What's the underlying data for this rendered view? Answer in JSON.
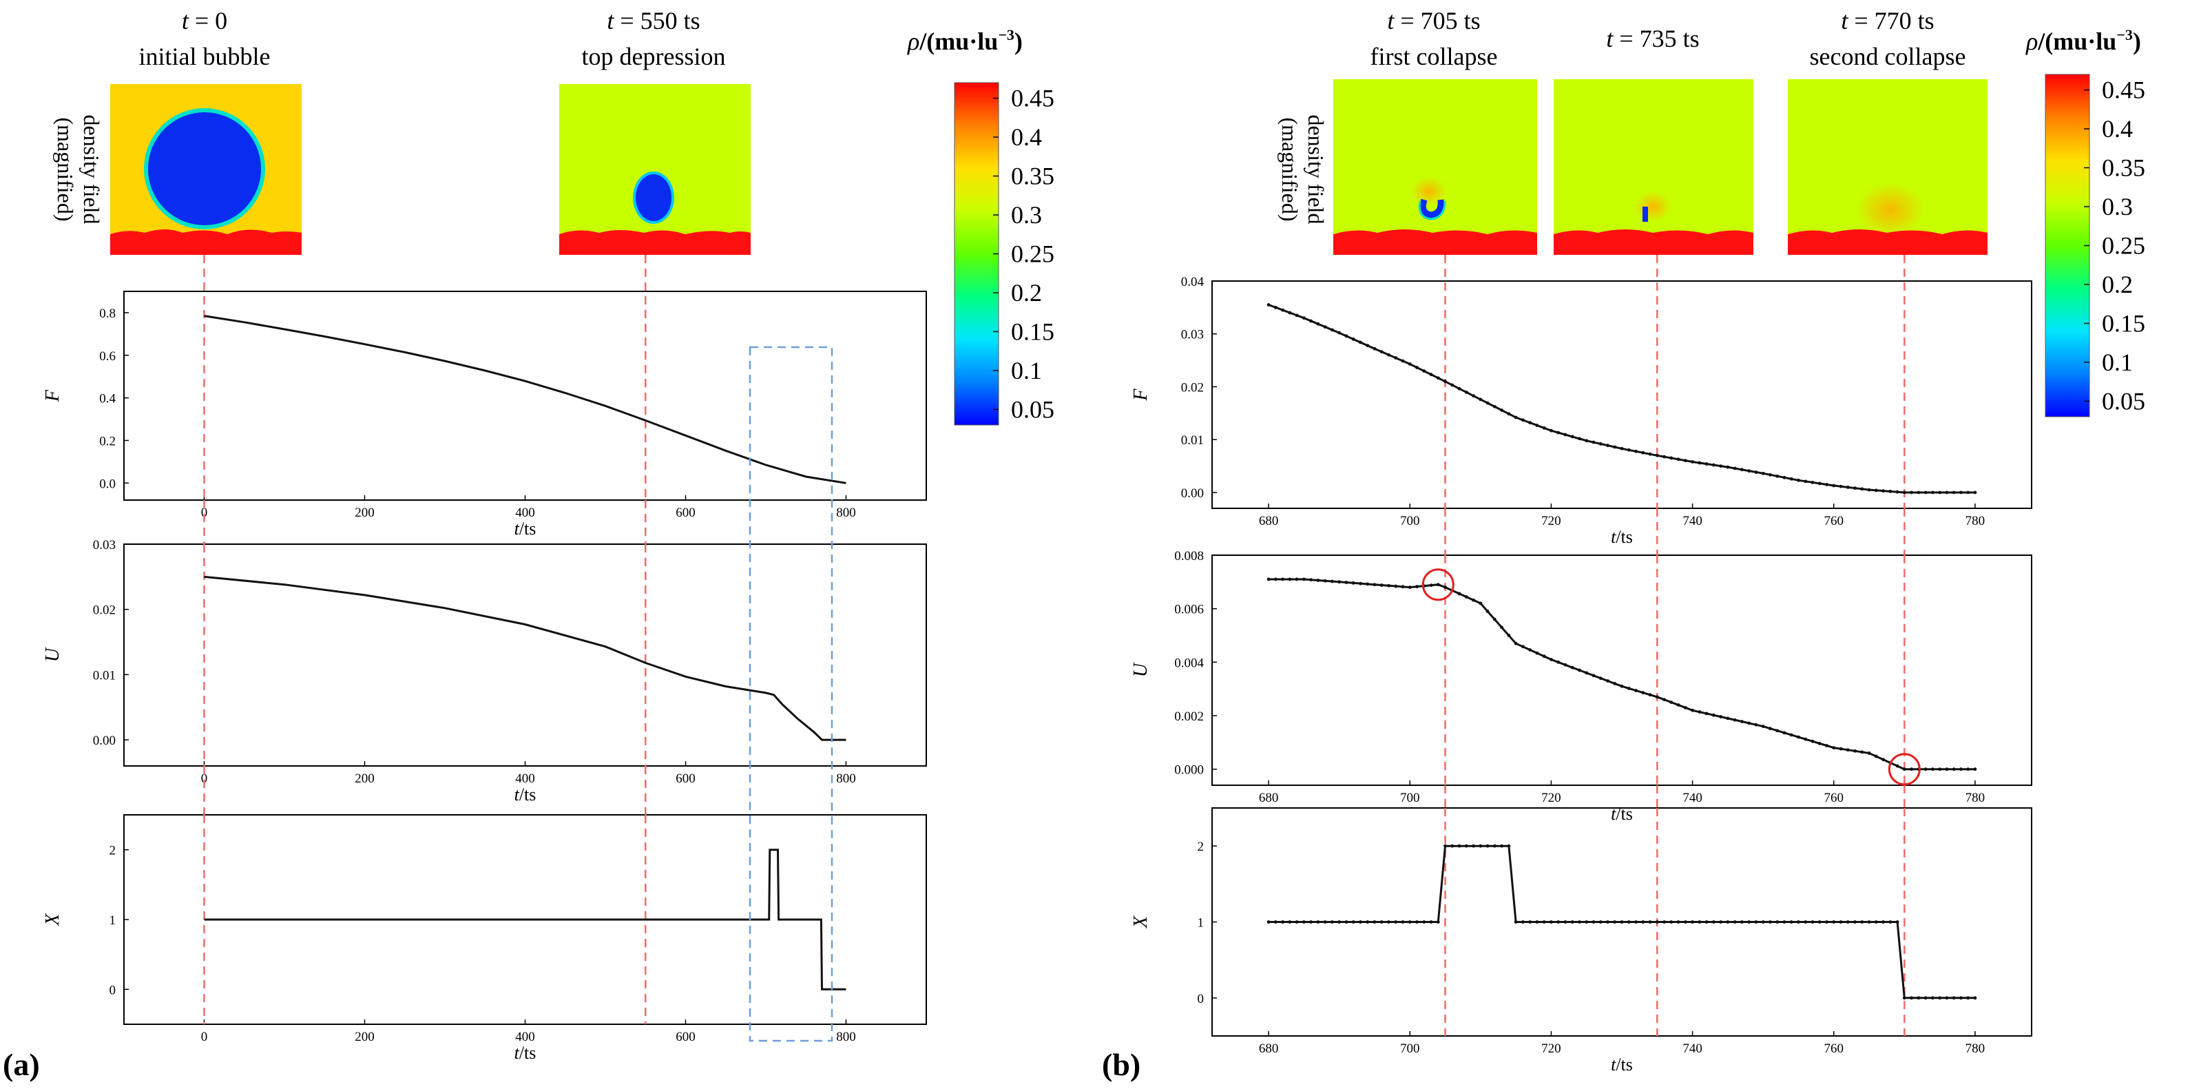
{
  "figure": {
    "panel_a_label": "(a)",
    "panel_b_label": "(b)",
    "density_label_line1": "density field",
    "density_label_line2": "(magnified)",
    "colorbar": {
      "title_symbol": "ρ",
      "title_unit": "/(mu·lu",
      "title_exp": "−3",
      "title_close": ")",
      "ticks": [
        "0.45",
        "0.4",
        "0.35",
        "0.3",
        "0.25",
        "0.2",
        "0.15",
        "0.1",
        "0.05"
      ],
      "tick_values": [
        0.45,
        0.4,
        0.35,
        0.3,
        0.25,
        0.2,
        0.15,
        0.1,
        0.05
      ],
      "range": [
        0.03,
        0.47
      ],
      "colors": [
        "#0000ff",
        "#00bfff",
        "#00ffbf",
        "#00ff00",
        "#bfff00",
        "#ffff00",
        "#ffbf00",
        "#ff4000",
        "#ff0000"
      ]
    },
    "snapshots_a": [
      {
        "t_label": "t = 0",
        "caption": "initial bubble",
        "t": 0
      },
      {
        "t_label": "t = 550 ts",
        "caption": "top depression",
        "t": 550
      }
    ],
    "snapshots_b": [
      {
        "t_label": "t = 705 ts",
        "caption": "first collapse",
        "t": 705
      },
      {
        "t_label": "t = 735 ts",
        "caption": "",
        "t": 735
      },
      {
        "t_label": "t = 770 ts",
        "caption": "second collapse",
        "t": 770
      }
    ],
    "xlabel_sym": "t",
    "xlabel_unit": "/ts"
  },
  "chart_data": [
    {
      "type": "line",
      "panel": "a",
      "ylabel": "F",
      "xlabel": "t/ts",
      "xlim": [
        -100,
        900
      ],
      "ylim": [
        -0.08,
        0.9
      ],
      "xticks": [
        0,
        200,
        400,
        600,
        800
      ],
      "xtick_labels": [
        "0",
        "200",
        "400",
        "600",
        "800"
      ],
      "yticks": [
        0.0,
        0.2,
        0.4,
        0.6,
        0.8
      ],
      "ytick_labels": [
        "0.0",
        "0.2",
        "0.4",
        "0.6",
        "0.8"
      ],
      "x": [
        0,
        50,
        100,
        150,
        200,
        250,
        300,
        350,
        400,
        450,
        500,
        550,
        600,
        650,
        700,
        750,
        800
      ],
      "y": [
        0.785,
        0.755,
        0.722,
        0.688,
        0.652,
        0.614,
        0.573,
        0.528,
        0.479,
        0.423,
        0.362,
        0.294,
        0.223,
        0.152,
        0.085,
        0.03,
        0.0
      ],
      "vlines": [
        0,
        550
      ]
    },
    {
      "type": "line",
      "panel": "a",
      "ylabel": "U",
      "xlabel": "t/ts",
      "xlim": [
        -100,
        900
      ],
      "ylim": [
        -0.004,
        0.03
      ],
      "xticks": [
        0,
        200,
        400,
        600,
        800
      ],
      "xtick_labels": [
        "0",
        "200",
        "400",
        "600",
        "800"
      ],
      "yticks": [
        0.0,
        0.01,
        0.02,
        0.03
      ],
      "ytick_labels": [
        "0.00",
        "0.01",
        "0.02",
        "0.03"
      ],
      "x": [
        0,
        100,
        200,
        300,
        400,
        500,
        550,
        600,
        650,
        700,
        710,
        720,
        740,
        760,
        770,
        800
      ],
      "y": [
        0.025,
        0.0238,
        0.0222,
        0.0202,
        0.0177,
        0.0143,
        0.0118,
        0.0097,
        0.0082,
        0.0072,
        0.0069,
        0.0055,
        0.0032,
        0.0012,
        0.0,
        0.0
      ],
      "vlines": [
        0,
        550
      ]
    },
    {
      "type": "line",
      "panel": "a",
      "ylabel": "X",
      "xlabel": "t/ts",
      "xlim": [
        -100,
        900
      ],
      "ylim": [
        -0.5,
        2.5
      ],
      "xticks": [
        0,
        200,
        400,
        600,
        800
      ],
      "xtick_labels": [
        "0",
        "200",
        "400",
        "600",
        "800"
      ],
      "yticks": [
        0,
        1,
        2
      ],
      "ytick_labels": [
        "0",
        "1",
        "2"
      ],
      "x": [
        0,
        704,
        705,
        715,
        716,
        769,
        770,
        800
      ],
      "y": [
        1,
        1,
        2,
        2,
        1,
        1,
        0,
        0
      ],
      "vlines": [
        0,
        550
      ]
    },
    {
      "type": "line",
      "panel": "b",
      "ylabel": "F",
      "xlabel": "t/ts",
      "xlim": [
        672,
        788
      ],
      "ylim": [
        -0.003,
        0.04
      ],
      "xticks": [
        680,
        700,
        720,
        740,
        760,
        780
      ],
      "xtick_labels": [
        "680",
        "700",
        "720",
        "740",
        "760",
        "780"
      ],
      "yticks": [
        0.0,
        0.01,
        0.02,
        0.03,
        0.04
      ],
      "ytick_labels": [
        "0.00",
        "0.01",
        "0.02",
        "0.03",
        "0.04"
      ],
      "x": [
        680,
        685,
        690,
        695,
        700,
        705,
        710,
        715,
        720,
        725,
        730,
        735,
        740,
        745,
        750,
        755,
        760,
        765,
        770,
        775,
        780
      ],
      "y": [
        0.0355,
        0.033,
        0.0302,
        0.0272,
        0.0243,
        0.021,
        0.0176,
        0.0142,
        0.0117,
        0.0098,
        0.0083,
        0.007,
        0.0058,
        0.0048,
        0.0036,
        0.0023,
        0.0013,
        0.0005,
        0.0,
        0.0,
        0.0
      ],
      "vlines": [
        705,
        735,
        770
      ]
    },
    {
      "type": "line",
      "panel": "b",
      "ylabel": "U",
      "xlabel": "t/ts",
      "xlim": [
        672,
        788
      ],
      "ylim": [
        -0.0006,
        0.008
      ],
      "xticks": [
        680,
        700,
        720,
        740,
        760,
        780
      ],
      "xtick_labels": [
        "680",
        "700",
        "720",
        "740",
        "760",
        "780"
      ],
      "yticks": [
        0.0,
        0.002,
        0.004,
        0.006,
        0.008
      ],
      "ytick_labels": [
        "0.000",
        "0.002",
        "0.004",
        "0.006",
        "0.008"
      ],
      "x": [
        680,
        685,
        690,
        695,
        700,
        704,
        705,
        710,
        715,
        720,
        725,
        730,
        735,
        740,
        745,
        750,
        755,
        760,
        765,
        770,
        775,
        780
      ],
      "y": [
        0.0071,
        0.0071,
        0.007,
        0.0069,
        0.0068,
        0.0069,
        0.0068,
        0.0062,
        0.0047,
        0.0041,
        0.0036,
        0.0031,
        0.0027,
        0.0022,
        0.0019,
        0.0016,
        0.0012,
        0.0008,
        0.0006,
        0.0,
        0.0,
        0.0
      ],
      "vlines": [
        705,
        735,
        770
      ],
      "markers": [
        {
          "x": 704,
          "y": 0.0069
        },
        {
          "x": 770,
          "y": 0.0
        }
      ]
    },
    {
      "type": "line",
      "panel": "b",
      "ylabel": "X",
      "xlabel": "t/ts",
      "xlim": [
        672,
        788
      ],
      "ylim": [
        -0.5,
        2.5
      ],
      "xticks": [
        680,
        700,
        720,
        740,
        760,
        780
      ],
      "xtick_labels": [
        "680",
        "700",
        "720",
        "740",
        "760",
        "780"
      ],
      "yticks": [
        0,
        1,
        2
      ],
      "ytick_labels": [
        "0",
        "1",
        "2"
      ],
      "x": [
        680,
        704,
        705,
        714,
        715,
        769,
        770,
        780
      ],
      "y": [
        1,
        1,
        2,
        2,
        1,
        1,
        0,
        0
      ],
      "vlines": [
        705,
        735,
        770
      ]
    }
  ]
}
